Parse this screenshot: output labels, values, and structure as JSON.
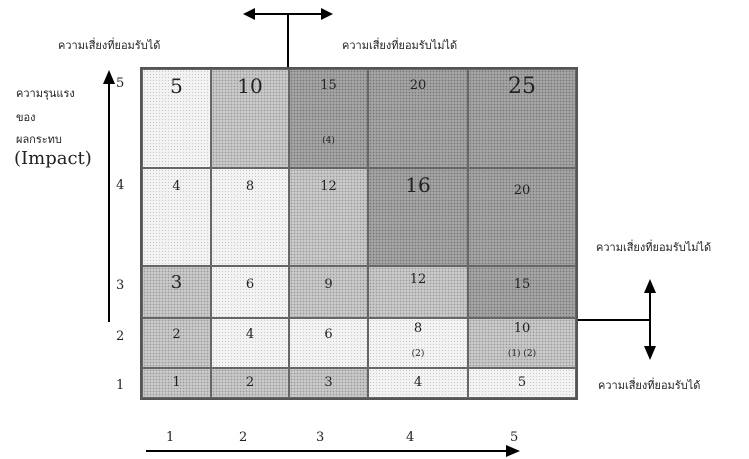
{
  "labels": {
    "top_left_acceptable": "ความเสี่ยงที่ยอมรับได้",
    "top_right_unacceptable": "ความเสี่ยงที่ยอมรับไม่ได้",
    "right_unacceptable": "ความเสี่ยงที่ยอมรับไม่ได้",
    "right_acceptable": "ความเสี่ยงที่ยอมรับได้",
    "impact_line1": "ความรุนแรง",
    "impact_line2": "ของ",
    "impact_line3": "ผลกระทบ",
    "impact_en": "(Impact)"
  },
  "y_axis": [
    "5",
    "4",
    "3",
    "2",
    "1"
  ],
  "x_axis": [
    "1",
    "2",
    "3",
    "4",
    "5"
  ],
  "matrix": [
    [
      {
        "value": "5",
        "shade": "light",
        "note": ""
      },
      {
        "value": "10",
        "shade": "mid",
        "note": ""
      },
      {
        "value": "15",
        "shade": "dark",
        "note": "(4)"
      },
      {
        "value": "20",
        "shade": "dark",
        "note": ""
      },
      {
        "value": "25",
        "shade": "dark",
        "note": ""
      }
    ],
    [
      {
        "value": "4",
        "shade": "light",
        "note": ""
      },
      {
        "value": "8",
        "shade": "light",
        "note": ""
      },
      {
        "value": "12",
        "shade": "mid",
        "note": ""
      },
      {
        "value": "16",
        "shade": "dark",
        "note": ""
      },
      {
        "value": "20",
        "shade": "dark",
        "note": ""
      }
    ],
    [
      {
        "value": "3",
        "shade": "mid",
        "note": ""
      },
      {
        "value": "6",
        "shade": "light",
        "note": ""
      },
      {
        "value": "9",
        "shade": "mid",
        "note": ""
      },
      {
        "value": "12",
        "shade": "mid",
        "note": ""
      },
      {
        "value": "15",
        "shade": "dark",
        "note": ""
      }
    ],
    [
      {
        "value": "2",
        "shade": "mid",
        "note": ""
      },
      {
        "value": "4",
        "shade": "light",
        "note": ""
      },
      {
        "value": "6",
        "shade": "light",
        "note": ""
      },
      {
        "value": "8",
        "shade": "light",
        "note": "(2)"
      },
      {
        "value": "10",
        "shade": "mid",
        "note": "(1) (2)"
      }
    ],
    [
      {
        "value": "1",
        "shade": "mid",
        "note": ""
      },
      {
        "value": "2",
        "shade": "mid",
        "note": ""
      },
      {
        "value": "3",
        "shade": "mid",
        "note": ""
      },
      {
        "value": "4",
        "shade": "light",
        "note": ""
      },
      {
        "value": "5",
        "shade": "light",
        "note": ""
      }
    ]
  ]
}
